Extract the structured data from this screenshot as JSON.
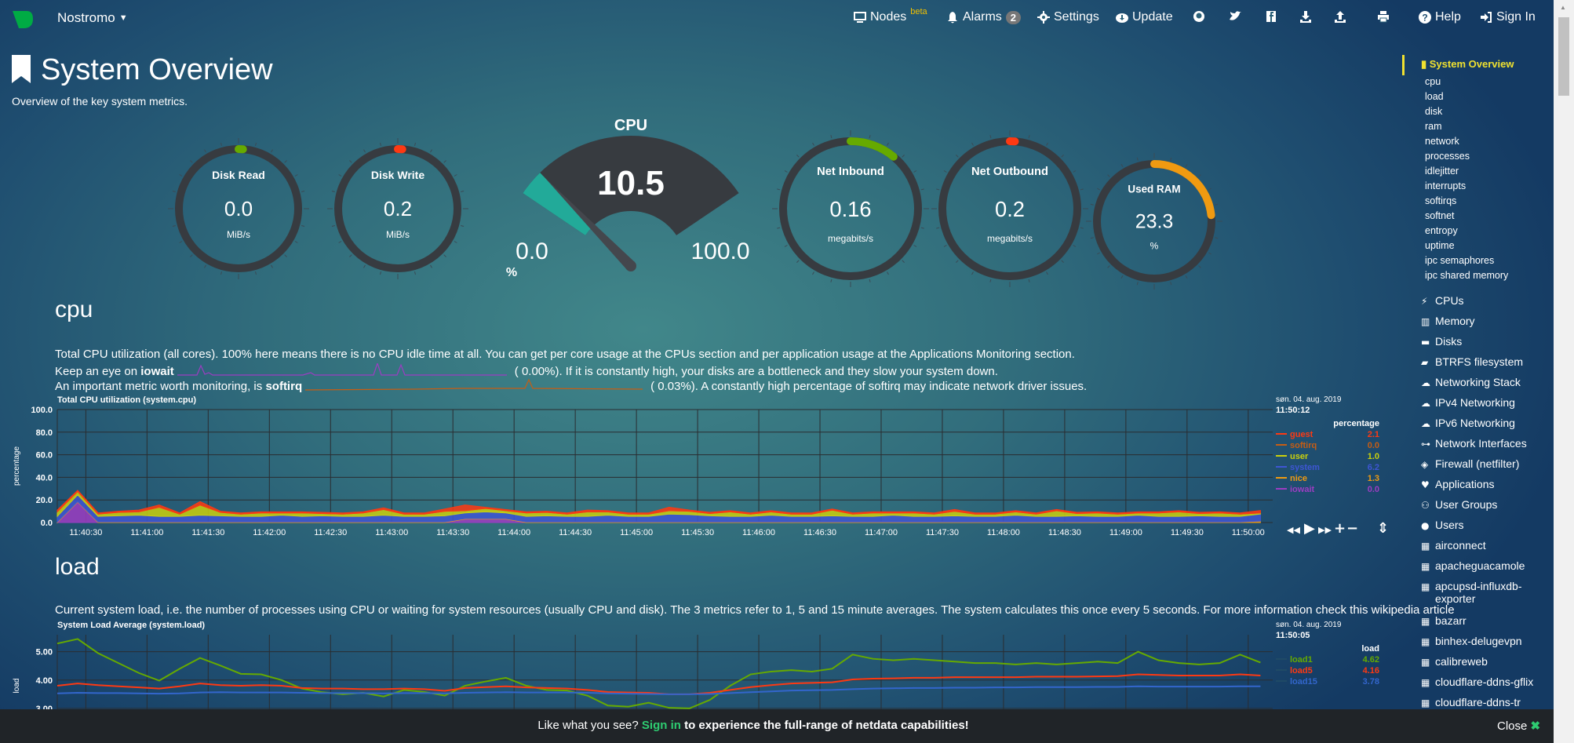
{
  "topbar": {
    "brand": "Nostromo",
    "nodes": "Nodes",
    "beta": "beta",
    "alarms": "Alarms",
    "alarm_count": "2",
    "settings": "Settings",
    "update": "Update",
    "help": "Help",
    "signin": "Sign In"
  },
  "header": {
    "title": "System Overview",
    "subtitle": "Overview of the key system metrics."
  },
  "gauges": [
    {
      "title": "Disk Read",
      "value": "0.0",
      "units": "MiB/s",
      "fraction": 0,
      "color": "#66aa00"
    },
    {
      "title": "Disk Write",
      "value": "0.2",
      "units": "MiB/s",
      "fraction": 0,
      "color": "#fe3912"
    },
    {
      "title": "Net Inbound",
      "value": "0.16",
      "units": "megabits/s",
      "fraction": 0.11,
      "color": "#66aa00"
    },
    {
      "title": "Net Outbound",
      "value": "0.2",
      "units": "megabits/s",
      "fraction": 0,
      "color": "#fe3912"
    },
    {
      "title": "Used RAM",
      "value": "23.3",
      "units": "%",
      "fraction": 0.233,
      "color": "#f09a11"
    }
  ],
  "cpu_gauge": {
    "title": "CPU",
    "value": "10.5",
    "min": "0.0",
    "max": "100.0",
    "units": "%",
    "fraction": 0.105,
    "color": "#22aa99"
  },
  "cpu_section": {
    "heading": "cpu",
    "line1": "Total CPU utilization (all cores). 100% here means there is no CPU idle time at all. You can get per core usage at the CPUs section and per application usage at the Applications Monitoring section.",
    "line2_pre": "Keep an eye on ",
    "line2_bold": "iowait",
    "line2_val": "(      0.00%). If it is constantly high, your disks are a bottleneck and they slow your system down.",
    "line3_pre": "An important metric worth monitoring, is ",
    "line3_bold": "softirq",
    "line3_val": "(      0.03%). A constantly high percentage of softirq may indicate network driver issues."
  },
  "load_section": {
    "heading": "load",
    "line1": "Current system load, i.e. the number of processes using CPU or waiting for system resources (usually CPU and disk). The 3 metrics refer to 1, 5 and 15 minute averages. The system calculates this once every 5 seconds. For more information check this wikipedia article"
  },
  "chart_data": [
    {
      "type": "area",
      "title": "Total CPU utilization (system.cpu)",
      "ylabel": "percentage",
      "ylim": [
        0,
        100
      ],
      "yticks": [
        "100.0",
        "80.0",
        "60.0",
        "40.0",
        "20.0",
        "0.0"
      ],
      "xticks": [
        "11:40:30",
        "11:41:00",
        "11:41:30",
        "11:42:00",
        "11:42:30",
        "11:43:00",
        "11:43:30",
        "11:44:00",
        "11:44:30",
        "11:45:00",
        "11:45:30",
        "11:46:00",
        "11:46:30",
        "11:47:00",
        "11:47:30",
        "11:48:00",
        "11:48:30",
        "11:49:00",
        "11:49:30",
        "11:50:00"
      ],
      "x_range": [
        "11:40:16",
        "11:50:12"
      ],
      "x_step_seconds": 10,
      "grid": true,
      "stacked": true,
      "legend_date": "søn. 04. aug. 2019",
      "legend_time": "11:50:12",
      "legend_units": "percentage",
      "series": [
        {
          "name": "guest",
          "color": "#fe3912",
          "current": "2.1",
          "values": [
            1.5,
            1,
            1,
            1,
            1.5,
            2,
            1,
            3,
            1,
            1,
            1,
            1,
            1,
            1,
            1,
            1,
            1.5,
            1,
            1,
            2,
            5,
            1,
            1,
            1,
            1,
            1,
            1.5,
            1,
            1,
            1,
            3,
            1,
            1,
            1,
            1,
            1,
            1,
            1,
            1,
            1,
            1,
            1,
            1,
            1,
            1.5,
            1,
            1,
            1,
            1,
            1,
            1,
            1,
            1,
            1,
            1,
            1,
            1,
            1,
            1,
            2.1
          ]
        },
        {
          "name": "softirq",
          "color": "#c75d13",
          "current": "0.0",
          "values": [
            0,
            0,
            0,
            0,
            0,
            0,
            0,
            0,
            0,
            0,
            0,
            0,
            0,
            0,
            0,
            0,
            0,
            0,
            0,
            0,
            0,
            0,
            0,
            0,
            0,
            0,
            0,
            0,
            0,
            0,
            0,
            0,
            0,
            0,
            0,
            0,
            0,
            0,
            0,
            0,
            0,
            0,
            0,
            0,
            0,
            0,
            0,
            0,
            0,
            0,
            0,
            0,
            0,
            0,
            0,
            0,
            0,
            0,
            0,
            0
          ]
        },
        {
          "name": "user",
          "color": "#cbd00c",
          "current": "1.0",
          "values": [
            4,
            3,
            2,
            3,
            3,
            8,
            2,
            9,
            3,
            2,
            3,
            2,
            3,
            2,
            2,
            3,
            5,
            2,
            2,
            4,
            2,
            3,
            2,
            3,
            3,
            2,
            4,
            3,
            2,
            2,
            3,
            3,
            2,
            4,
            2,
            3,
            2,
            2,
            5,
            2,
            3,
            2,
            3,
            2,
            4,
            2,
            2,
            3,
            2,
            5,
            2,
            3,
            2,
            2,
            3,
            4,
            2,
            3,
            2,
            1.0
          ]
        },
        {
          "name": "system",
          "color": "#3e56d4",
          "current": "6.2",
          "values": [
            5,
            6,
            5,
            5.5,
            6,
            5,
            5,
            6,
            5.5,
            5,
            5,
            6,
            5,
            5.5,
            5,
            5,
            6,
            5,
            5,
            5.5,
            5,
            6,
            5,
            5,
            5.5,
            5,
            5,
            6,
            5,
            5,
            7,
            6.5,
            5.5,
            5,
            5,
            6,
            5,
            5,
            5.5,
            5,
            5,
            6,
            5,
            5,
            5.5,
            5,
            5,
            6,
            5,
            5,
            5.5,
            5,
            5,
            6,
            5,
            5,
            5.5,
            5,
            5,
            6.2
          ]
        },
        {
          "name": "nice",
          "color": "#f09a11",
          "current": "1.3",
          "values": [
            0.5,
            0.5,
            0.5,
            0.5,
            0.5,
            0.5,
            0.5,
            0.5,
            0.5,
            0.5,
            0.5,
            0.5,
            0.5,
            0.5,
            0.5,
            0.5,
            0.5,
            0.5,
            0.5,
            0.5,
            0.5,
            0.5,
            0.5,
            0.5,
            0.5,
            0.5,
            0.5,
            0.5,
            0.5,
            0.5,
            0.5,
            0.5,
            0.5,
            0.5,
            0.5,
            0.5,
            0.5,
            0.5,
            0.5,
            0.5,
            0.5,
            0.5,
            0.5,
            0.5,
            0.5,
            0.5,
            0.5,
            0.5,
            0.5,
            0.5,
            0.5,
            0.5,
            0.5,
            0.5,
            0.5,
            0.5,
            0.5,
            0.5,
            0.5,
            1.3
          ]
        },
        {
          "name": "iowait",
          "color": "#9c3dc2",
          "current": "0.0",
          "values": [
            0,
            18,
            0,
            0,
            0,
            0,
            0,
            0,
            0,
            0,
            0,
            0,
            0,
            0,
            0,
            0,
            0,
            0,
            0,
            0,
            3,
            3,
            3,
            0,
            0,
            0,
            0,
            0,
            0,
            0,
            0,
            0,
            0,
            0,
            0,
            0,
            0,
            0,
            0,
            0,
            0,
            0,
            0,
            0,
            0,
            0,
            0,
            0,
            0,
            0,
            0,
            0,
            0,
            0,
            0,
            0,
            0,
            0,
            0,
            0
          ]
        }
      ]
    },
    {
      "type": "line",
      "title": "System Load Average (system.load)",
      "ylabel": "load",
      "ylim": [
        2,
        5.6
      ],
      "yticks": [
        "5.00",
        "4.00",
        "3.00"
      ],
      "x_range": [
        "11:40:16",
        "11:50:05"
      ],
      "x_step_seconds": 10,
      "grid": true,
      "legend_date": "søn. 04. aug. 2019",
      "legend_time": "11:50:05",
      "legend_units": "load",
      "series": [
        {
          "name": "load1",
          "color": "#66aa00",
          "current": "4.62",
          "values": [
            5.29,
            5.45,
            4.95,
            4.6,
            4.25,
            3.98,
            4.4,
            4.78,
            4.51,
            4.22,
            4.2,
            4.0,
            3.7,
            3.57,
            3.5,
            3.55,
            3.42,
            3.65,
            3.58,
            3.45,
            3.8,
            3.95,
            4.08,
            3.8,
            3.65,
            3.63,
            3.45,
            3.1,
            3.06,
            3.2,
            3.02,
            3.0,
            3.3,
            3.8,
            4.2,
            4.3,
            4.35,
            4.3,
            4.4,
            4.9,
            4.75,
            4.7,
            4.75,
            4.7,
            4.65,
            4.6,
            4.6,
            4.55,
            4.6,
            4.55,
            4.6,
            4.65,
            4.6,
            5.0,
            4.7,
            4.6,
            4.55,
            4.6,
            4.9,
            4.62
          ]
        },
        {
          "name": "load5",
          "color": "#fe3912",
          "current": "4.16",
          "values": [
            3.8,
            3.88,
            3.82,
            3.78,
            3.74,
            3.7,
            3.78,
            3.88,
            3.82,
            3.8,
            3.82,
            3.8,
            3.72,
            3.7,
            3.7,
            3.68,
            3.68,
            3.7,
            3.68,
            3.62,
            3.72,
            3.75,
            3.78,
            3.74,
            3.72,
            3.7,
            3.65,
            3.58,
            3.56,
            3.55,
            3.5,
            3.5,
            3.55,
            3.65,
            3.75,
            3.82,
            3.88,
            3.9,
            3.92,
            4.02,
            4.05,
            4.06,
            4.08,
            4.08,
            4.1,
            4.1,
            4.1,
            4.1,
            4.12,
            4.12,
            4.12,
            4.13,
            4.14,
            4.2,
            4.18,
            4.16,
            4.16,
            4.16,
            4.2,
            4.16
          ]
        },
        {
          "name": "load15",
          "color": "#3366cc",
          "current": "3.78",
          "values": [
            3.53,
            3.55,
            3.54,
            3.54,
            3.53,
            3.52,
            3.53,
            3.56,
            3.57,
            3.56,
            3.56,
            3.56,
            3.55,
            3.54,
            3.54,
            3.54,
            3.53,
            3.54,
            3.54,
            3.53,
            3.55,
            3.56,
            3.57,
            3.56,
            3.56,
            3.56,
            3.55,
            3.53,
            3.52,
            3.51,
            3.5,
            3.5,
            3.51,
            3.54,
            3.57,
            3.6,
            3.63,
            3.64,
            3.65,
            3.68,
            3.7,
            3.71,
            3.72,
            3.72,
            3.73,
            3.73,
            3.74,
            3.74,
            3.75,
            3.75,
            3.75,
            3.76,
            3.76,
            3.78,
            3.77,
            3.77,
            3.77,
            3.77,
            3.78,
            3.78
          ]
        }
      ]
    }
  ],
  "sidebar": {
    "active": "System Overview",
    "sub": [
      "cpu",
      "load",
      "disk",
      "ram",
      "network",
      "processes",
      "idlejitter",
      "interrupts",
      "softirqs",
      "softnet",
      "entropy",
      "uptime",
      "ipc semaphores",
      "ipc shared memory"
    ],
    "items": [
      {
        "label": "CPUs",
        "icon": "bolt-icon",
        "glyph": "⚡"
      },
      {
        "label": "Memory",
        "icon": "memory-icon",
        "glyph": "▥"
      },
      {
        "label": "Disks",
        "icon": "hdd-icon",
        "glyph": "▬"
      },
      {
        "label": "BTRFS filesystem",
        "icon": "folder-icon",
        "glyph": "▰"
      },
      {
        "label": "Networking Stack",
        "icon": "cloud-icon",
        "glyph": "☁"
      },
      {
        "label": "IPv4 Networking",
        "icon": "cloud-icon",
        "glyph": "☁"
      },
      {
        "label": "IPv6 Networking",
        "icon": "cloud-icon",
        "glyph": "☁"
      },
      {
        "label": "Network Interfaces",
        "icon": "sitemap-icon",
        "glyph": "⊶"
      },
      {
        "label": "Firewall (netfilter)",
        "icon": "shield-icon",
        "glyph": "◈"
      },
      {
        "label": "Applications",
        "icon": "heartbeat-icon",
        "glyph": "♥"
      },
      {
        "label": "User Groups",
        "icon": "users-icon",
        "glyph": "⚇"
      },
      {
        "label": "Users",
        "icon": "user-icon",
        "glyph": "●"
      },
      {
        "label": "airconnect",
        "icon": "grid-icon",
        "glyph": "▦"
      },
      {
        "label": "apacheguacamole",
        "icon": "grid-icon",
        "glyph": "▦"
      },
      {
        "label": "apcupsd-influxdb-",
        "label2": "exporter",
        "icon": "grid-icon",
        "glyph": "▦"
      },
      {
        "label": "bazarr",
        "icon": "grid-icon",
        "glyph": "▦"
      },
      {
        "label": "binhex-delugevpn",
        "icon": "grid-icon",
        "glyph": "▦"
      },
      {
        "label": "calibreweb",
        "icon": "grid-icon",
        "glyph": "▦"
      },
      {
        "label": "cloudflare-ddns-gflix",
        "icon": "grid-icon",
        "glyph": "▦"
      },
      {
        "label": "cloudflare-ddns-tr",
        "icon": "grid-icon",
        "glyph": "▦"
      }
    ]
  },
  "footer": {
    "pre": "Like what you see? ",
    "link": "Sign in",
    "post": " to experience the full-range of netdata capabilities!",
    "close": "Close"
  },
  "colors": {
    "accent": "#f0e130",
    "signin": "#2ecc71",
    "ring": "#373b40"
  }
}
